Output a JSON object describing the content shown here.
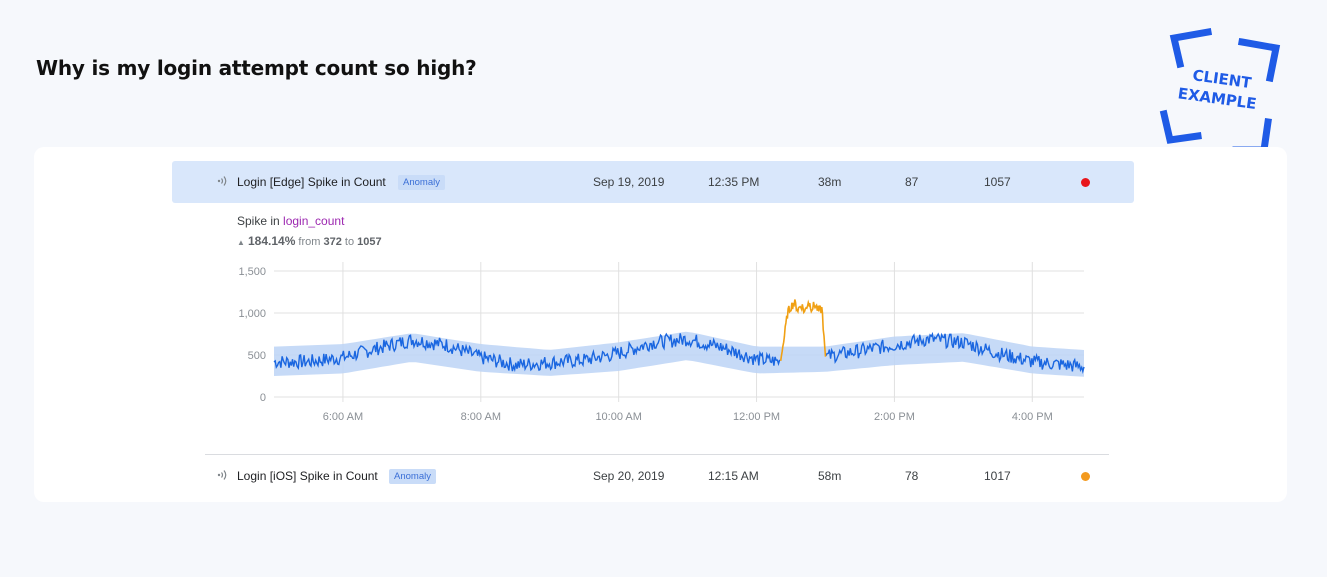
{
  "page": {
    "title": "Why is my login attempt count so high?",
    "stamp_lines": [
      "CLIENT",
      "EXAMPLE"
    ]
  },
  "rows": [
    {
      "icon": "signal-icon",
      "title": "Login [Edge] Spike in Count",
      "badge": "Anomaly",
      "date": "Sep 19, 2019",
      "time": "12:35 PM",
      "duration": "38m",
      "count_a": "87",
      "count_b": "1057",
      "status_color": "#e8161b"
    },
    {
      "icon": "signal-icon",
      "title": "Login [iOS] Spike in Count",
      "badge": "Anomaly",
      "date": "Sep 20, 2019",
      "time": "12:15 AM",
      "duration": "58m",
      "count_a": "78",
      "count_b": "1017",
      "status_color": "#f39a1f"
    }
  ],
  "detail": {
    "spike_prefix": "Spike in ",
    "metric": "login_count",
    "arrow": "▲",
    "percent": "184.14%",
    "from_label": " from ",
    "from_value": "372",
    "to_label": " to ",
    "to_value": "1057"
  },
  "chart_data": {
    "type": "line",
    "x_ticks": [
      "6:00 AM",
      "8:00 AM",
      "10:00 AM",
      "12:00 PM",
      "2:00 PM",
      "4:00 PM"
    ],
    "y_ticks": [
      "0",
      "500",
      "1,000",
      "1,500"
    ],
    "x_range_hours": [
      5,
      16.75
    ],
    "ylim": [
      0,
      1500
    ],
    "grid": true,
    "colors": {
      "series": "#1a66e0",
      "band": "#bcd4f6",
      "anomaly": "#f0a014",
      "grid": "#e0e0e0"
    },
    "series": [
      {
        "name": "",
        "x": [
          5.0,
          5.5,
          6.0,
          6.5,
          7.0,
          7.5,
          8.0,
          8.5,
          9.0,
          9.5,
          10.0,
          10.5,
          11.0,
          11.5,
          12.0,
          12.35,
          12.7,
          13.0,
          13.5,
          14.0,
          14.5,
          15.0,
          15.5,
          16.0,
          16.5,
          16.75
        ],
        "values": [
          420,
          420,
          470,
          580,
          680,
          620,
          470,
          380,
          410,
          440,
          520,
          650,
          690,
          590,
          450,
          420,
          440,
          480,
          550,
          620,
          690,
          650,
          520,
          420,
          380,
          360
        ]
      },
      {
        "name": "",
        "x": [
          12.35,
          12.4,
          12.45,
          12.5,
          12.55,
          12.6,
          12.65,
          12.7,
          12.75,
          12.8,
          12.85,
          12.9,
          12.95,
          13.0
        ],
        "values": [
          430,
          700,
          1000,
          1080,
          1120,
          1040,
          1100,
          1010,
          1140,
          1060,
          1100,
          1020,
          1050,
          480
        ]
      }
    ],
    "band": {
      "x": [
        5.0,
        6.0,
        7.0,
        8.0,
        9.0,
        10.0,
        11.0,
        12.0,
        13.0,
        14.0,
        15.0,
        16.0,
        16.75
      ],
      "upper": [
        600,
        630,
        760,
        630,
        560,
        650,
        780,
        600,
        600,
        720,
        760,
        600,
        560
      ],
      "lower": [
        250,
        280,
        420,
        300,
        250,
        310,
        440,
        280,
        300,
        380,
        420,
        280,
        240
      ]
    }
  }
}
